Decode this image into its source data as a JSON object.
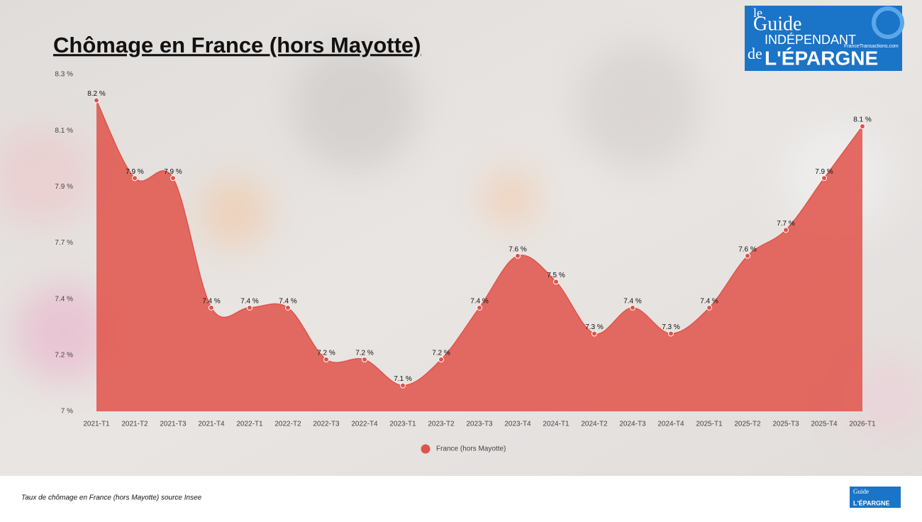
{
  "chart_data": {
    "type": "area",
    "title": "Chômage en France (hors Mayotte)",
    "categories": [
      "2021-T1",
      "2021-T2",
      "2021-T3",
      "2021-T4",
      "2022-T1",
      "2022-T2",
      "2022-T3",
      "2022-T4",
      "2023-T1",
      "2023-T2",
      "2023-T3",
      "2023-T4",
      "2024-T1",
      "2024-T2",
      "2024-T3",
      "2024-T4",
      "2025-T1",
      "2025-T2",
      "2025-T3",
      "2025-T4",
      "2026-T1"
    ],
    "series": [
      {
        "name": "France (hors Mayotte)",
        "color": "#e0534a",
        "values": [
          8.2,
          7.9,
          7.9,
          7.4,
          7.4,
          7.4,
          7.2,
          7.2,
          7.1,
          7.2,
          7.4,
          7.6,
          7.5,
          7.3,
          7.4,
          7.3,
          7.4,
          7.6,
          7.7,
          7.9,
          8.1
        ],
        "value_labels": [
          "8.2 %",
          "7.9 %",
          "7.9 %",
          "7.4 %",
          "7.4 %",
          "7.4 %",
          "7.2 %",
          "7.2 %",
          "7.1 %",
          "7.2 %",
          "7.4 %",
          "7.6 %",
          "7.5 %",
          "7.3 %",
          "7.4 %",
          "7.3 %",
          "7.4 %",
          "7.6 %",
          "7.7 %",
          "7.9 %",
          "8.1 %"
        ]
      }
    ],
    "ylim": [
      7,
      8.3
    ],
    "yticks": [
      {
        "value": 7,
        "label": "7 %"
      },
      {
        "value": 7.2167,
        "label": "7.2 %"
      },
      {
        "value": 7.4333,
        "label": "7.4 %"
      },
      {
        "value": 7.65,
        "label": "7.7 %"
      },
      {
        "value": 7.8667,
        "label": "7.9 %"
      },
      {
        "value": 8.0833,
        "label": "8.1 %"
      },
      {
        "value": 8.3,
        "label": "8.3 %"
      }
    ],
    "legend": "bottom"
  },
  "footer": "Taux de chômage en France (hors Mayotte) source Insee",
  "logo": {
    "line1": "le",
    "line2": "Guide",
    "line3": "INDÉPENDANT",
    "line4": "de",
    "line5": "L'ÉPARGNE",
    "site": "FranceTransactions.com"
  }
}
